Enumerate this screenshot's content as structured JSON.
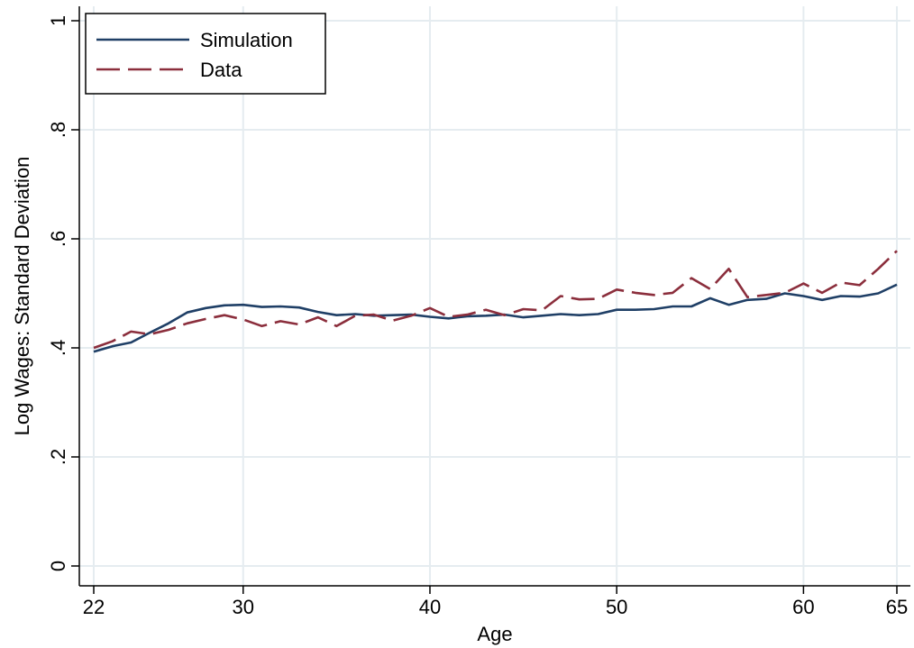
{
  "chart_data": {
    "type": "line",
    "xlabel": "Age",
    "ylabel": "Log Wages: Standard Deviation",
    "xlim": [
      22,
      65
    ],
    "ylim": [
      0,
      1
    ],
    "x_ticks": [
      22,
      30,
      40,
      50,
      60,
      65
    ],
    "x_tick_labels": [
      "22",
      "30",
      "40",
      "50",
      "60",
      "65"
    ],
    "y_ticks": [
      0,
      0.2,
      0.4,
      0.6,
      0.8,
      1
    ],
    "y_tick_labels": [
      "0",
      ".2",
      ".4",
      ".6",
      ".8",
      "1"
    ],
    "grid": true,
    "legend_position": "top-left",
    "x": [
      22,
      23,
      24,
      25,
      26,
      27,
      28,
      29,
      30,
      31,
      32,
      33,
      34,
      35,
      36,
      37,
      38,
      39,
      40,
      41,
      42,
      43,
      44,
      45,
      46,
      47,
      48,
      49,
      50,
      51,
      52,
      53,
      54,
      55,
      56,
      57,
      58,
      59,
      60,
      61,
      62,
      63,
      64,
      65
    ],
    "series": [
      {
        "name": "Simulation",
        "color": "#1f3f66",
        "dash": "solid",
        "values": [
          0.393,
          0.403,
          0.41,
          0.428,
          0.445,
          0.465,
          0.473,
          0.478,
          0.479,
          0.475,
          0.476,
          0.474,
          0.466,
          0.46,
          0.462,
          0.459,
          0.46,
          0.461,
          0.457,
          0.454,
          0.458,
          0.459,
          0.461,
          0.456,
          0.459,
          0.462,
          0.46,
          0.462,
          0.47,
          0.47,
          0.471,
          0.476,
          0.476,
          0.491,
          0.479,
          0.488,
          0.49,
          0.5,
          0.495,
          0.488,
          0.495,
          0.494,
          0.5,
          0.516
        ]
      },
      {
        "name": "Data",
        "color": "#8b2e3c",
        "dash": "long-dash",
        "values": [
          0.4,
          0.412,
          0.43,
          0.425,
          0.433,
          0.445,
          0.453,
          0.46,
          0.452,
          0.44,
          0.449,
          0.443,
          0.456,
          0.44,
          0.459,
          0.461,
          0.45,
          0.459,
          0.473,
          0.457,
          0.461,
          0.47,
          0.46,
          0.471,
          0.469,
          0.495,
          0.489,
          0.49,
          0.507,
          0.501,
          0.497,
          0.501,
          0.528,
          0.508,
          0.545,
          0.493,
          0.497,
          0.501,
          0.518,
          0.501,
          0.52,
          0.515,
          0.545,
          0.578
        ]
      }
    ]
  }
}
